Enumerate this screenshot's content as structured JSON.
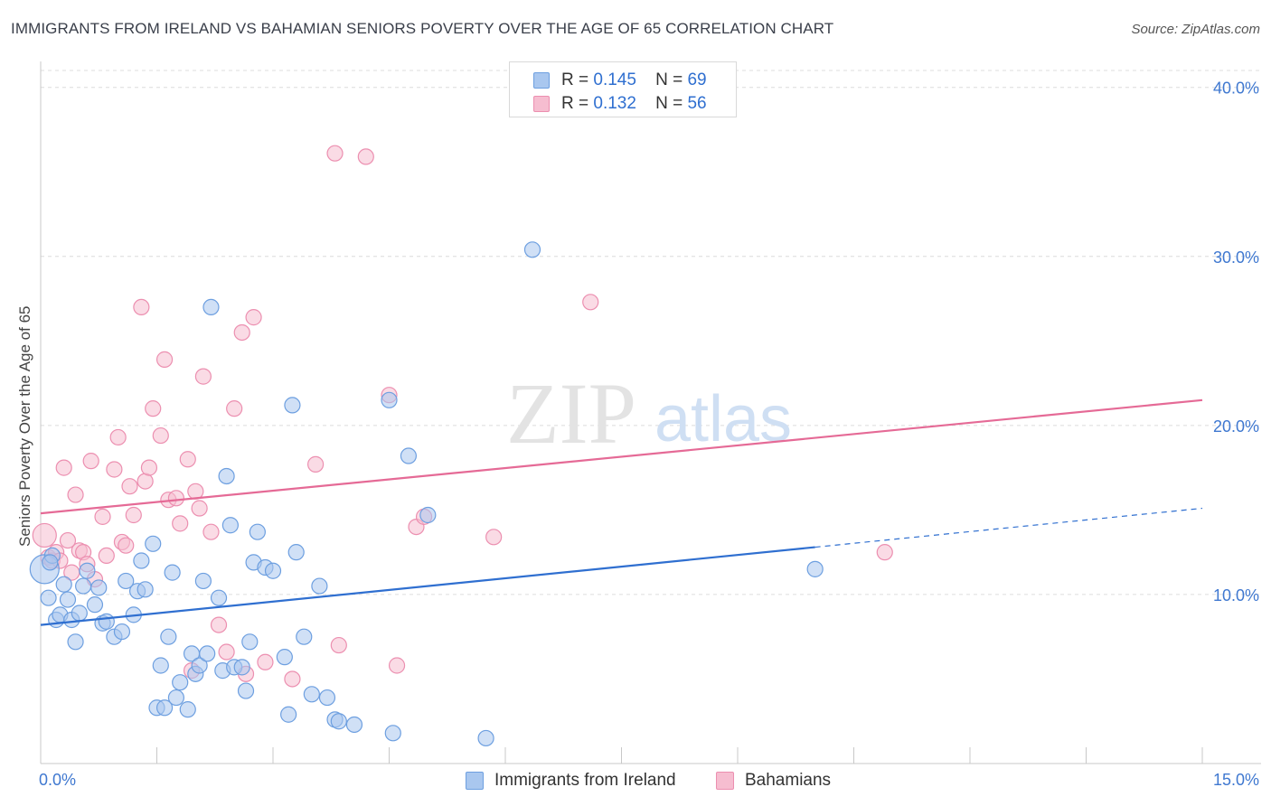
{
  "header": {
    "title": "IMMIGRANTS FROM IRELAND VS BAHAMIAN SENIORS POVERTY OVER THE AGE OF 65 CORRELATION CHART",
    "source": "Source: ZipAtlas.com"
  },
  "watermark": {
    "zip": "ZIP",
    "atlas": "atlas"
  },
  "legend": {
    "rows": [
      {
        "r_label": "R =",
        "r_value": "0.145",
        "n_label": "N =",
        "n_value": "69"
      },
      {
        "r_label": "R =",
        "r_value": "0.132",
        "n_label": "N =",
        "n_value": "56"
      }
    ]
  },
  "bottom_legend": {
    "series1": "Immigrants from Ireland",
    "series2": "Bahamians"
  },
  "colors": {
    "series1_fill": "#a9c7ef",
    "series1_stroke": "#6d9fe0",
    "series1_line": "#2f6fd0",
    "series2_fill": "#f6bdd0",
    "series2_stroke": "#ec8fb0",
    "series2_line": "#e56a96",
    "tick_label": "#3f78d0",
    "grid": "#dcdcdc"
  },
  "chart_data": {
    "type": "scatter",
    "title": "IMMIGRANTS FROM IRELAND VS BAHAMIAN SENIORS POVERTY OVER THE AGE OF 65 CORRELATION CHART",
    "xlabel": "",
    "ylabel": "Seniors Poverty Over the Age of 65",
    "xlim": [
      0,
      15
    ],
    "ylim": [
      0,
      41
    ],
    "x_tick_labels": [
      {
        "value": 0,
        "label": "0.0%"
      },
      {
        "value": 15,
        "label": "15.0%"
      }
    ],
    "y_tick_labels": [
      {
        "value": 10,
        "label": "10.0%"
      },
      {
        "value": 20,
        "label": "20.0%"
      },
      {
        "value": 30,
        "label": "30.0%"
      },
      {
        "value": 40,
        "label": "40.0%"
      }
    ],
    "series": [
      {
        "name": "Immigrants from Ireland",
        "R": 0.145,
        "N": 69,
        "trend": {
          "x0": 0,
          "y0": 8.2,
          "x1": 10.0,
          "y1": 12.8,
          "dash_to_x": 15,
          "dash_to_y": 15.1
        },
        "points": [
          [
            0.05,
            11.5
          ],
          [
            0.1,
            9.8
          ],
          [
            0.15,
            12.3
          ],
          [
            0.2,
            8.5
          ],
          [
            0.25,
            8.8
          ],
          [
            0.3,
            10.6
          ],
          [
            0.35,
            9.7
          ],
          [
            0.4,
            8.5
          ],
          [
            0.45,
            7.2
          ],
          [
            0.5,
            8.9
          ],
          [
            0.55,
            10.5
          ],
          [
            0.6,
            11.4
          ],
          [
            0.7,
            9.4
          ],
          [
            0.75,
            10.4
          ],
          [
            0.8,
            8.3
          ],
          [
            0.85,
            8.4
          ],
          [
            0.95,
            7.5
          ],
          [
            1.05,
            7.8
          ],
          [
            1.1,
            10.8
          ],
          [
            1.2,
            8.8
          ],
          [
            1.25,
            10.2
          ],
          [
            1.3,
            12.0
          ],
          [
            1.35,
            10.3
          ],
          [
            1.45,
            13.0
          ],
          [
            1.5,
            3.3
          ],
          [
            1.55,
            5.8
          ],
          [
            1.6,
            3.3
          ],
          [
            1.65,
            7.5
          ],
          [
            1.7,
            11.3
          ],
          [
            1.75,
            3.9
          ],
          [
            1.8,
            4.8
          ],
          [
            1.9,
            3.2
          ],
          [
            1.95,
            6.5
          ],
          [
            2.0,
            5.3
          ],
          [
            2.05,
            5.8
          ],
          [
            2.1,
            10.8
          ],
          [
            2.15,
            6.5
          ],
          [
            2.2,
            27.0
          ],
          [
            2.3,
            9.8
          ],
          [
            2.35,
            5.5
          ],
          [
            2.4,
            17.0
          ],
          [
            2.45,
            14.1
          ],
          [
            2.5,
            5.7
          ],
          [
            2.6,
            5.7
          ],
          [
            2.65,
            4.3
          ],
          [
            2.7,
            7.2
          ],
          [
            2.75,
            11.9
          ],
          [
            2.8,
            13.7
          ],
          [
            2.9,
            11.6
          ],
          [
            3.0,
            11.4
          ],
          [
            3.15,
            6.3
          ],
          [
            3.2,
            2.9
          ],
          [
            3.25,
            21.2
          ],
          [
            3.3,
            12.5
          ],
          [
            3.4,
            7.5
          ],
          [
            3.5,
            4.1
          ],
          [
            3.6,
            10.5
          ],
          [
            3.7,
            3.9
          ],
          [
            3.8,
            2.6
          ],
          [
            3.85,
            2.5
          ],
          [
            4.05,
            2.3
          ],
          [
            4.5,
            21.5
          ],
          [
            4.55,
            1.8
          ],
          [
            4.75,
            18.2
          ],
          [
            5.0,
            14.7
          ],
          [
            5.75,
            1.5
          ],
          [
            6.35,
            30.4
          ],
          [
            10.0,
            11.5
          ],
          [
            0.12,
            11.9
          ]
        ]
      },
      {
        "name": "Bahamians",
        "R": 0.132,
        "N": 56,
        "trend": {
          "x0": 0,
          "y0": 14.8,
          "x1": 15,
          "y1": 21.5
        },
        "points": [
          [
            0.05,
            13.5
          ],
          [
            0.1,
            12.2
          ],
          [
            0.15,
            12.0
          ],
          [
            0.2,
            12.5
          ],
          [
            0.3,
            17.5
          ],
          [
            0.35,
            13.2
          ],
          [
            0.45,
            15.9
          ],
          [
            0.5,
            12.6
          ],
          [
            0.55,
            12.5
          ],
          [
            0.6,
            11.8
          ],
          [
            0.65,
            17.9
          ],
          [
            0.7,
            10.9
          ],
          [
            0.8,
            14.6
          ],
          [
            0.85,
            12.3
          ],
          [
            0.95,
            17.4
          ],
          [
            1.0,
            19.3
          ],
          [
            1.05,
            13.1
          ],
          [
            1.1,
            12.9
          ],
          [
            1.15,
            16.4
          ],
          [
            1.2,
            14.7
          ],
          [
            1.3,
            27.0
          ],
          [
            1.35,
            16.7
          ],
          [
            1.4,
            17.5
          ],
          [
            1.45,
            21.0
          ],
          [
            1.55,
            19.4
          ],
          [
            1.6,
            23.9
          ],
          [
            1.65,
            15.6
          ],
          [
            1.75,
            15.7
          ],
          [
            1.8,
            14.2
          ],
          [
            1.9,
            18.0
          ],
          [
            1.95,
            5.5
          ],
          [
            2.0,
            16.1
          ],
          [
            2.05,
            15.1
          ],
          [
            2.1,
            22.9
          ],
          [
            2.2,
            13.7
          ],
          [
            2.3,
            8.2
          ],
          [
            2.4,
            6.6
          ],
          [
            2.5,
            21.0
          ],
          [
            2.6,
            25.5
          ],
          [
            2.65,
            5.3
          ],
          [
            2.75,
            26.4
          ],
          [
            2.9,
            6.0
          ],
          [
            3.25,
            5.0
          ],
          [
            3.55,
            17.7
          ],
          [
            3.8,
            36.1
          ],
          [
            3.85,
            7.0
          ],
          [
            4.2,
            35.9
          ],
          [
            4.5,
            21.8
          ],
          [
            4.6,
            5.8
          ],
          [
            4.85,
            14.0
          ],
          [
            4.95,
            14.6
          ],
          [
            5.85,
            13.4
          ],
          [
            7.1,
            27.3
          ],
          [
            10.9,
            12.5
          ],
          [
            0.25,
            12.0
          ],
          [
            0.4,
            11.3
          ]
        ]
      }
    ]
  }
}
